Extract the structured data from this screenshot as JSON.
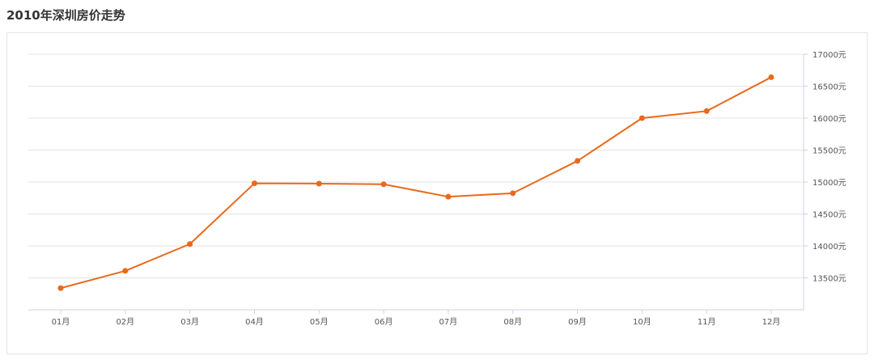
{
  "page_title": "2010年深圳房价走势",
  "colors": {
    "line": "#e8691c",
    "grid": "#e3e3e3",
    "axis": "#cfcfe8",
    "panel_border": "#e5e5e5"
  },
  "chart_data": {
    "type": "line",
    "title": "2010年深圳房价走势",
    "categories": [
      "01月",
      "02月",
      "03月",
      "04月",
      "05月",
      "06月",
      "07月",
      "08月",
      "09月",
      "10月",
      "11月",
      "12月"
    ],
    "series": [
      {
        "values": [
          13340,
          13610,
          14030,
          14980,
          14975,
          14965,
          14770,
          14825,
          15330,
          16000,
          16110,
          16640
        ]
      }
    ],
    "y_axis": {
      "position": "right",
      "ticks": [
        13500,
        14000,
        14500,
        15000,
        15500,
        16000,
        16500,
        17000
      ],
      "tick_labels": [
        "13500元",
        "14000元",
        "14500元",
        "15000元",
        "15500元",
        "16000元",
        "16500元",
        "17000元"
      ],
      "ylim": [
        13000,
        17000
      ]
    },
    "xlabel": "",
    "ylabel": "",
    "grid": true,
    "legend": "none"
  }
}
